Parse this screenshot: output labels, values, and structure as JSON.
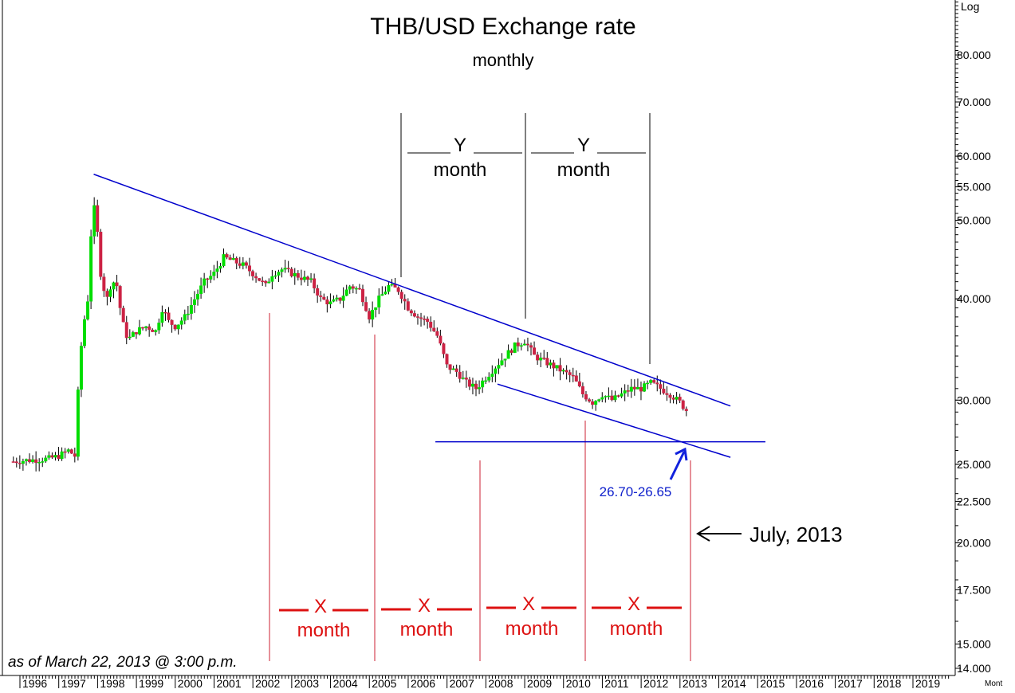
{
  "chart_data": {
    "type": "candlestick",
    "title": "THB/USD Exchange rate",
    "subtitle": "monthly",
    "scale_label": "Log",
    "x_axis_unit_label": "Mont",
    "footnote": "as of March 22, 2013 @ 3:00 p.m.",
    "ylim": [
      14.0,
      95.0
    ],
    "xlim": [
      1995.8,
      2020.1
    ],
    "y_ticks": [
      {
        "value": 80.0,
        "label": "80.000"
      },
      {
        "value": 70.0,
        "label": "70.000"
      },
      {
        "value": 60.0,
        "label": "60.000"
      },
      {
        "value": 55.0,
        "label": "55.000"
      },
      {
        "value": 50.0,
        "label": "50.000"
      },
      {
        "value": 40.0,
        "label": "40.000"
      },
      {
        "value": 30.0,
        "label": "30.000"
      },
      {
        "value": 25.0,
        "label": "25.000"
      },
      {
        "value": 22.5,
        "label": "22.500"
      },
      {
        "value": 20.0,
        "label": "20.000"
      },
      {
        "value": 17.5,
        "label": "17.500"
      },
      {
        "value": 15.0,
        "label": "15.000"
      },
      {
        "value": 14.0,
        "label": "14.000"
      }
    ],
    "x_ticks": [
      {
        "value": 1996,
        "label": "1996"
      },
      {
        "value": 1997,
        "label": "1997"
      },
      {
        "value": 1998,
        "label": "1998"
      },
      {
        "value": 1999,
        "label": "1999"
      },
      {
        "value": 2000,
        "label": "2000"
      },
      {
        "value": 2001,
        "label": "2001"
      },
      {
        "value": 2002,
        "label": "2002"
      },
      {
        "value": 2003,
        "label": "2003"
      },
      {
        "value": 2004,
        "label": "2004"
      },
      {
        "value": 2005,
        "label": "2005"
      },
      {
        "value": 2006,
        "label": "2006"
      },
      {
        "value": 2007,
        "label": "2007"
      },
      {
        "value": 2008,
        "label": "2008"
      },
      {
        "value": 2009,
        "label": "2009"
      },
      {
        "value": 2010,
        "label": "2010"
      },
      {
        "value": 2011,
        "label": "2011"
      },
      {
        "value": 2012,
        "label": "2012"
      },
      {
        "value": 2013,
        "label": "2013"
      },
      {
        "value": 2014,
        "label": "2014"
      },
      {
        "value": 2015,
        "label": "2015"
      },
      {
        "value": 2016,
        "label": "2016"
      },
      {
        "value": 2017,
        "label": "2017"
      },
      {
        "value": 2018,
        "label": "2018"
      },
      {
        "value": 2019,
        "label": "2019"
      }
    ],
    "colors": {
      "up": "#00dd00",
      "down": "#cc2244",
      "wick": "#000000",
      "trend": "#0000cc",
      "cycle": "#cc2233",
      "annotation": "#000000"
    },
    "monthly_closes": [
      [
        1995.83,
        25.2
      ],
      [
        1996.0,
        25.25
      ],
      [
        1996.25,
        25.3
      ],
      [
        1996.5,
        25.35
      ],
      [
        1996.75,
        25.4
      ],
      [
        1997.0,
        25.6
      ],
      [
        1997.25,
        26.0
      ],
      [
        1997.45,
        25.5
      ],
      [
        1997.5,
        31.0
      ],
      [
        1997.58,
        35.0
      ],
      [
        1997.67,
        38.0
      ],
      [
        1997.75,
        40.0
      ],
      [
        1997.83,
        48.0
      ],
      [
        1997.92,
        52.0
      ],
      [
        1998.0,
        48.0
      ],
      [
        1998.08,
        43.0
      ],
      [
        1998.17,
        41.0
      ],
      [
        1998.25,
        40.0
      ],
      [
        1998.33,
        41.5
      ],
      [
        1998.42,
        42.0
      ],
      [
        1998.5,
        41.5
      ],
      [
        1998.58,
        39.0
      ],
      [
        1998.67,
        37.0
      ],
      [
        1998.75,
        36.0
      ],
      [
        1998.83,
        35.8
      ],
      [
        1999.0,
        36.5
      ],
      [
        1999.25,
        37.0
      ],
      [
        1999.5,
        36.5
      ],
      [
        1999.67,
        39.0
      ],
      [
        1999.83,
        37.5
      ],
      [
        2000.0,
        37.0
      ],
      [
        2000.25,
        38.0
      ],
      [
        2000.5,
        40.0
      ],
      [
        2000.75,
        42.0
      ],
      [
        2001.0,
        43.0
      ],
      [
        2001.25,
        45.0
      ],
      [
        2001.5,
        44.5
      ],
      [
        2001.75,
        44.0
      ],
      [
        2002.0,
        43.0
      ],
      [
        2002.33,
        41.5
      ],
      [
        2002.5,
        43.0
      ],
      [
        2002.75,
        43.5
      ],
      [
        2003.0,
        43.0
      ],
      [
        2003.25,
        42.5
      ],
      [
        2003.5,
        42.0
      ],
      [
        2003.75,
        40.0
      ],
      [
        2004.0,
        39.5
      ],
      [
        2004.25,
        40.0
      ],
      [
        2004.5,
        41.5
      ],
      [
        2004.75,
        41.0
      ],
      [
        2005.0,
        38.0
      ],
      [
        2005.25,
        40.0
      ],
      [
        2005.5,
        41.5
      ],
      [
        2005.75,
        41.0
      ],
      [
        2006.0,
        39.0
      ],
      [
        2006.25,
        38.0
      ],
      [
        2006.5,
        37.5
      ],
      [
        2006.75,
        36.0
      ],
      [
        2007.0,
        33.0
      ],
      [
        2007.25,
        32.5
      ],
      [
        2007.5,
        31.5
      ],
      [
        2007.75,
        31.0
      ],
      [
        2008.0,
        32.0
      ],
      [
        2008.25,
        33.0
      ],
      [
        2008.5,
        34.0
      ],
      [
        2008.75,
        35.0
      ],
      [
        2009.0,
        35.5
      ],
      [
        2009.25,
        34.0
      ],
      [
        2009.5,
        33.5
      ],
      [
        2009.75,
        33.0
      ],
      [
        2010.0,
        32.5
      ],
      [
        2010.25,
        32.0
      ],
      [
        2010.5,
        30.5
      ],
      [
        2010.75,
        29.8
      ],
      [
        2011.0,
        30.5
      ],
      [
        2011.25,
        30.0
      ],
      [
        2011.5,
        30.5
      ],
      [
        2011.75,
        31.0
      ],
      [
        2012.0,
        31.0
      ],
      [
        2012.25,
        31.5
      ],
      [
        2012.5,
        31.0
      ],
      [
        2012.75,
        30.5
      ],
      [
        2013.0,
        29.8
      ],
      [
        2013.2,
        29.0
      ]
    ],
    "trendlines": [
      {
        "name": "resistance",
        "from": [
          1997.9,
          57.0
        ],
        "to": [
          2014.3,
          29.5
        ]
      },
      {
        "name": "support",
        "from": [
          2008.3,
          31.4
        ],
        "to": [
          2014.3,
          25.5
        ]
      },
      {
        "name": "horizontal-support",
        "from": [
          2006.7,
          26.65
        ],
        "to": [
          2015.2,
          26.65
        ]
      }
    ]
  },
  "annotations": {
    "target_range": "26.70-26.65",
    "target_date": "July, 2013",
    "y_cycles": [
      {
        "letter": "Y",
        "unit": "month"
      },
      {
        "letter": "Y",
        "unit": "month"
      }
    ],
    "x_cycles": [
      {
        "letter": "X",
        "unit": "month"
      },
      {
        "letter": "X",
        "unit": "month"
      },
      {
        "letter": "X",
        "unit": "month"
      },
      {
        "letter": "X",
        "unit": "month"
      }
    ]
  }
}
